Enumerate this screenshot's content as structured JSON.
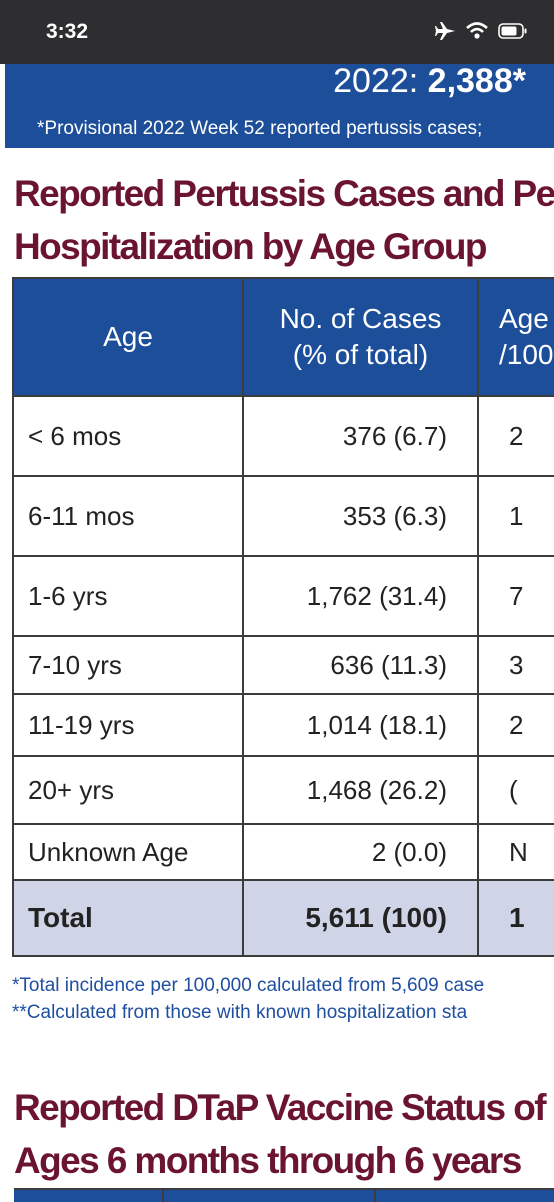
{
  "status_bar": {
    "time": "3:32",
    "icons": [
      "airplane-icon",
      "wifi-icon",
      "battery-icon"
    ]
  },
  "banner": {
    "total_prefix": "2022:",
    "total_value": "2,388*",
    "note": "*Provisional 2022 Week 52 reported pertussis cases;"
  },
  "section1": {
    "title_line1": "Reported Pertussis Cases and Per",
    "title_line2": "Hospitalization by Age Group"
  },
  "table": {
    "headers": {
      "age": "Age",
      "cases_line1": "No. of Cases",
      "cases_line2": "(% of total)",
      "rate_line1": "Age",
      "rate_line2": "/100"
    },
    "rows": [
      {
        "age": "< 6 mos",
        "cases": "376 (6.7)",
        "rate": "2"
      },
      {
        "age": "6-11 mos",
        "cases": "353 (6.3)",
        "rate": "1"
      },
      {
        "age": "1-6 yrs",
        "cases": "1,762 (31.4)",
        "rate": "7"
      },
      {
        "age": "7-10 yrs",
        "cases": "636 (11.3)",
        "rate": "3"
      },
      {
        "age": "11-19 yrs",
        "cases": "1,014 (18.1)",
        "rate": "2"
      },
      {
        "age": "20+ yrs",
        "cases": "1,468 (26.2)",
        "rate": "("
      },
      {
        "age": "Unknown Age",
        "cases": "2 (0.0)",
        "rate": "N"
      }
    ],
    "total": {
      "age": "Total",
      "cases": "5,611 (100)",
      "rate": "1"
    }
  },
  "footnotes": {
    "line1": "*Total incidence per 100,000 calculated from 5,609 case",
    "line2": "**Calculated from those with known hospitalization sta"
  },
  "section2": {
    "title_line1": "Reported DTaP Vaccine Status of (",
    "title_line2": "Ages 6 months through 6 years"
  },
  "colors": {
    "banner_blue": "#1d4e9a",
    "heading_maroon": "#6b1431",
    "total_row": "#cfd4e6",
    "footnote_blue": "#1f4fa0"
  }
}
